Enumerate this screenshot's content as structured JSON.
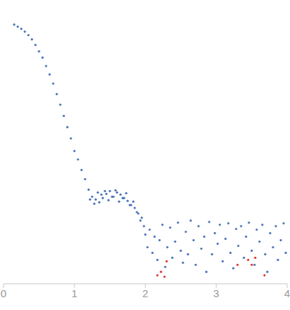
{
  "chart_data": {
    "type": "scatter",
    "xlim": [
      0,
      4
    ],
    "xticks": [
      0,
      1,
      2,
      3,
      4
    ],
    "ylim": [
      -0.72,
      3.32
    ],
    "yticks": [
      0,
      1,
      2,
      3
    ],
    "tick_labels": "x",
    "grid": false,
    "series": [
      {
        "color": "#4a72b8",
        "marker": "circle",
        "x": [
          0.15,
          0.2,
          0.25,
          0.3,
          0.35,
          0.4,
          0.45,
          0.5,
          0.55,
          0.6,
          0.65,
          0.7,
          0.75,
          0.8,
          0.85,
          0.9,
          0.95,
          1.0,
          1.05,
          1.1,
          1.15,
          1.2,
          1.22,
          1.25,
          1.28,
          1.3,
          1.33,
          1.35,
          1.38,
          1.4,
          1.43,
          1.45,
          1.48,
          1.5,
          1.53,
          1.55,
          1.58,
          1.6,
          1.63,
          1.65,
          1.68,
          1.7,
          1.73,
          1.75,
          1.78,
          1.8,
          1.83,
          1.85,
          1.88,
          1.9,
          1.93,
          1.95,
          1.98,
          2.0,
          2.03,
          2.06,
          2.1,
          2.13,
          2.17,
          2.2,
          2.24,
          2.28,
          2.31,
          2.35,
          2.38,
          2.42,
          2.46,
          2.5,
          2.53,
          2.57,
          2.6,
          2.64,
          2.68,
          2.71,
          2.75,
          2.79,
          2.83,
          2.86,
          2.9,
          2.94,
          2.98,
          3.02,
          3.05,
          3.09,
          3.13,
          3.17,
          3.2,
          3.24,
          3.28,
          3.31,
          3.35,
          3.39,
          3.42,
          3.46,
          3.5,
          3.54,
          3.57,
          3.61,
          3.65,
          3.69,
          3.72,
          3.76,
          3.8,
          3.84,
          3.87,
          3.91,
          3.95,
          3.98
        ],
        "values": [
          2.97,
          2.94,
          2.91,
          2.87,
          2.82,
          2.76,
          2.68,
          2.59,
          2.5,
          2.38,
          2.26,
          2.13,
          1.98,
          1.83,
          1.67,
          1.51,
          1.35,
          1.17,
          1.05,
          0.9,
          0.77,
          0.62,
          0.48,
          0.52,
          0.42,
          0.48,
          0.58,
          0.44,
          0.55,
          0.5,
          0.6,
          0.56,
          0.47,
          0.6,
          0.52,
          0.52,
          0.61,
          0.58,
          0.45,
          0.55,
          0.5,
          0.5,
          0.57,
          0.46,
          0.4,
          0.4,
          0.45,
          0.36,
          0.3,
          0.28,
          0.18,
          0.22,
          0.1,
          -0.02,
          -0.2,
          0.05,
          -0.28,
          -0.05,
          -0.38,
          -0.1,
          0.12,
          -0.48,
          -0.2,
          0.08,
          -0.35,
          -0.12,
          0.15,
          -0.25,
          -0.42,
          0.02,
          -0.3,
          0.18,
          -0.1,
          -0.45,
          0.1,
          -0.22,
          -0.05,
          -0.55,
          0.16,
          -0.3,
          0.0,
          -0.15,
          0.12,
          -0.4,
          -0.08,
          0.14,
          -0.28,
          -0.5,
          0.06,
          -0.18,
          0.1,
          -0.35,
          -0.05,
          0.15,
          -0.25,
          -0.45,
          0.05,
          -0.12,
          0.12,
          -0.3,
          -0.55,
          0.0,
          -0.2,
          0.1,
          -0.38,
          -0.1,
          0.14,
          -0.28
        ]
      },
      {
        "color": "#e0312f",
        "marker": "circle",
        "x": [
          2.17,
          2.22,
          2.27,
          2.3,
          3.3,
          3.45,
          3.5,
          3.55,
          3.68
        ],
        "values": [
          -0.6,
          -0.55,
          -0.62,
          -0.4,
          -0.45,
          -0.38,
          -0.45,
          -0.35,
          -0.6
        ]
      }
    ]
  }
}
